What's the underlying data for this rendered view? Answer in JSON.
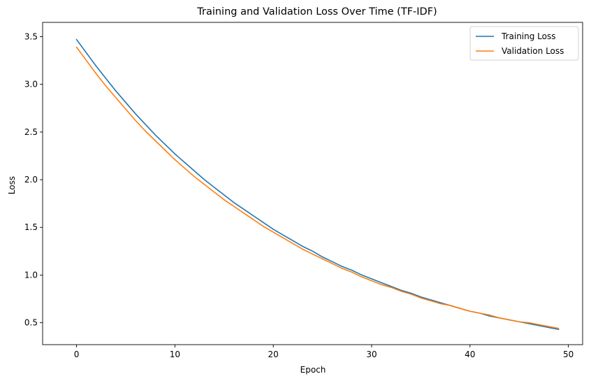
{
  "chart_data": {
    "type": "line",
    "title": "Training and Validation Loss Over Time (TF-IDF)",
    "xlabel": "Epoch",
    "ylabel": "Loss",
    "xlim": [
      -3.45,
      51.45
    ],
    "ylim": [
      0.27,
      3.65
    ],
    "x_ticks": [
      0,
      10,
      20,
      30,
      40,
      50
    ],
    "x_tick_labels": [
      "0",
      "10",
      "20",
      "30",
      "40",
      "50"
    ],
    "y_ticks": [
      0.5,
      1.0,
      1.5,
      2.0,
      2.5,
      3.0,
      3.5
    ],
    "y_tick_labels": [
      "0.5",
      "1.0",
      "1.5",
      "2.0",
      "2.5",
      "3.0",
      "3.5"
    ],
    "grid": false,
    "legend_position": "top-right",
    "series": [
      {
        "name": "Training Loss",
        "color": "#1f77b4",
        "x": [
          0,
          1,
          2,
          3,
          4,
          5,
          6,
          7,
          8,
          9,
          10,
          11,
          12,
          13,
          14,
          15,
          16,
          17,
          18,
          19,
          20,
          21,
          22,
          23,
          24,
          25,
          26,
          27,
          28,
          29,
          30,
          31,
          32,
          33,
          34,
          35,
          36,
          37,
          38,
          39,
          40,
          41,
          42,
          43,
          44,
          45,
          46,
          47,
          48,
          49
        ],
        "y": [
          3.47,
          3.33,
          3.19,
          3.06,
          2.93,
          2.81,
          2.69,
          2.58,
          2.47,
          2.37,
          2.27,
          2.18,
          2.09,
          2.0,
          1.92,
          1.84,
          1.76,
          1.69,
          1.62,
          1.55,
          1.48,
          1.42,
          1.36,
          1.3,
          1.25,
          1.19,
          1.14,
          1.09,
          1.05,
          1.0,
          0.96,
          0.92,
          0.88,
          0.84,
          0.81,
          0.77,
          0.74,
          0.71,
          0.68,
          0.65,
          0.62,
          0.6,
          0.57,
          0.55,
          0.53,
          0.51,
          0.49,
          0.47,
          0.45,
          0.43
        ]
      },
      {
        "name": "Validation Loss",
        "color": "#ff7f0e",
        "x": [
          0,
          1,
          2,
          3,
          4,
          5,
          6,
          7,
          8,
          9,
          10,
          11,
          12,
          13,
          14,
          15,
          16,
          17,
          18,
          19,
          20,
          21,
          22,
          23,
          24,
          25,
          26,
          27,
          28,
          29,
          30,
          31,
          32,
          33,
          34,
          35,
          36,
          37,
          38,
          39,
          40,
          41,
          42,
          43,
          44,
          45,
          46,
          47,
          48,
          49
        ],
        "y": [
          3.39,
          3.25,
          3.11,
          2.98,
          2.86,
          2.74,
          2.62,
          2.51,
          2.41,
          2.31,
          2.21,
          2.12,
          2.03,
          1.95,
          1.87,
          1.79,
          1.72,
          1.65,
          1.58,
          1.51,
          1.45,
          1.39,
          1.33,
          1.27,
          1.22,
          1.17,
          1.12,
          1.07,
          1.03,
          0.98,
          0.94,
          0.9,
          0.87,
          0.83,
          0.8,
          0.76,
          0.73,
          0.7,
          0.68,
          0.65,
          0.62,
          0.6,
          0.58,
          0.55,
          0.53,
          0.51,
          0.5,
          0.48,
          0.46,
          0.44
        ]
      }
    ]
  }
}
